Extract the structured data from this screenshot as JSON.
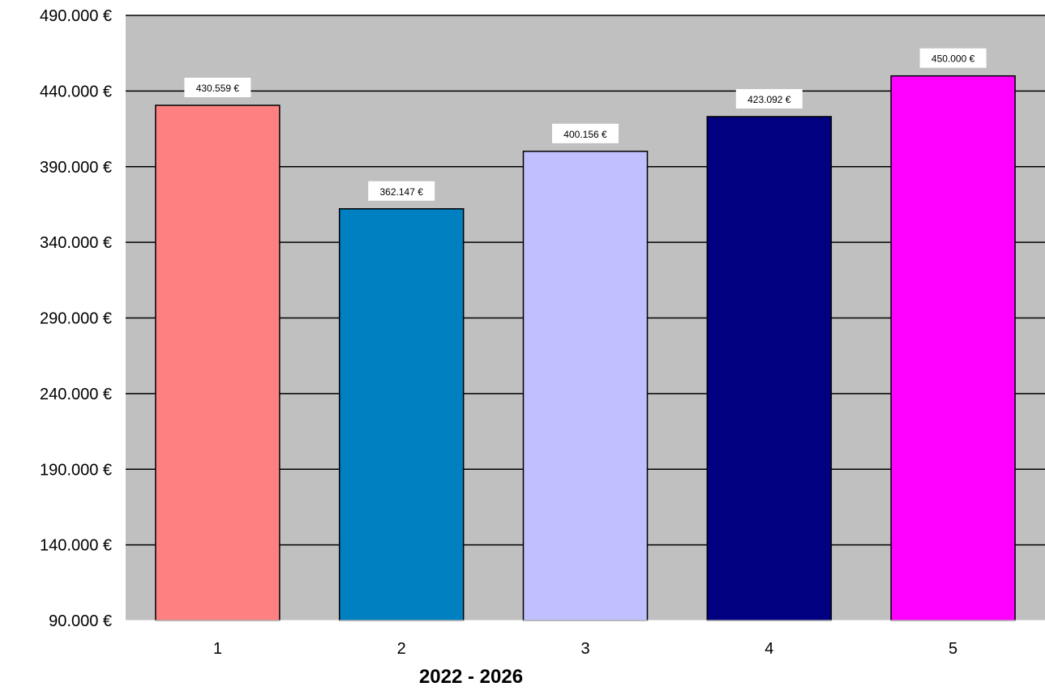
{
  "chart_data": {
    "type": "bar",
    "title": "",
    "xlabel": "2022 - 2026",
    "ylabel": "",
    "categories": [
      "1",
      "2",
      "3",
      "4",
      "5"
    ],
    "values": [
      430559,
      362147,
      400156,
      423092,
      450000
    ],
    "data_labels": [
      "430.559 €",
      "362.147 €",
      "400.156 €",
      "423.092 €",
      "450.000 €"
    ],
    "ylim": [
      90000,
      490000
    ],
    "yticks": [
      90000,
      140000,
      190000,
      240000,
      290000,
      340000,
      390000,
      440000,
      490000
    ],
    "ytick_labels": [
      "90.000 €",
      "140.000 €",
      "190.000 €",
      "240.000 €",
      "290.000 €",
      "340.000 €",
      "390.000 €",
      "440.000 €",
      "490.000 €"
    ],
    "grid": true,
    "plot_background": "#C0C0C0",
    "bar_colors": [
      "#FF8080",
      "#0080C0",
      "#C0C0FF",
      "#000080",
      "#FF00FF"
    ],
    "bar_edge_color": "#000000"
  }
}
